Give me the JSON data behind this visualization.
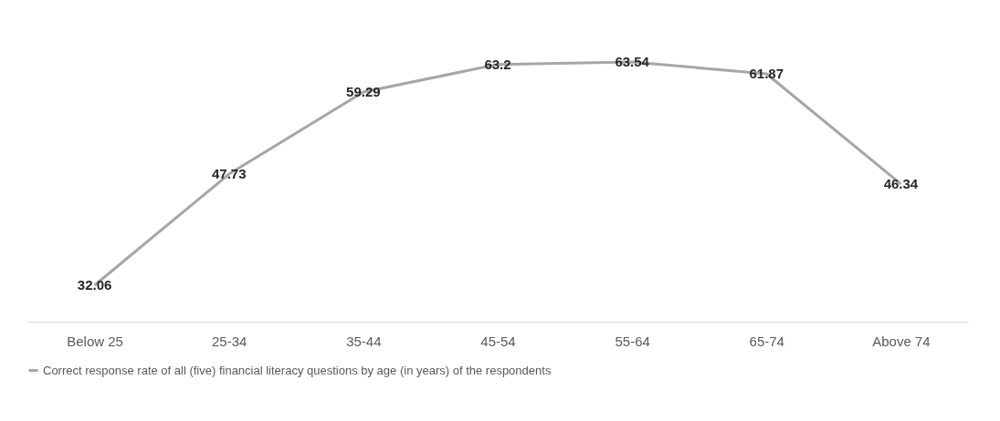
{
  "chart_data": {
    "type": "line",
    "categories": [
      "Below 25",
      "25-34",
      "35-44",
      "45-54",
      "55-64",
      "65-74",
      "Above 74"
    ],
    "series": [
      {
        "name": "Correct response rate of all (five) financial literacy questions by age (in years) of the respondents",
        "color": "#a6a6a6",
        "values": [
          32.06,
          47.73,
          59.29,
          63.2,
          63.54,
          61.87,
          46.34
        ]
      }
    ],
    "data_labels": true,
    "grid": false,
    "legend": "bottom",
    "tick_labels": "x",
    "marker": "none",
    "line_style": "solid"
  }
}
